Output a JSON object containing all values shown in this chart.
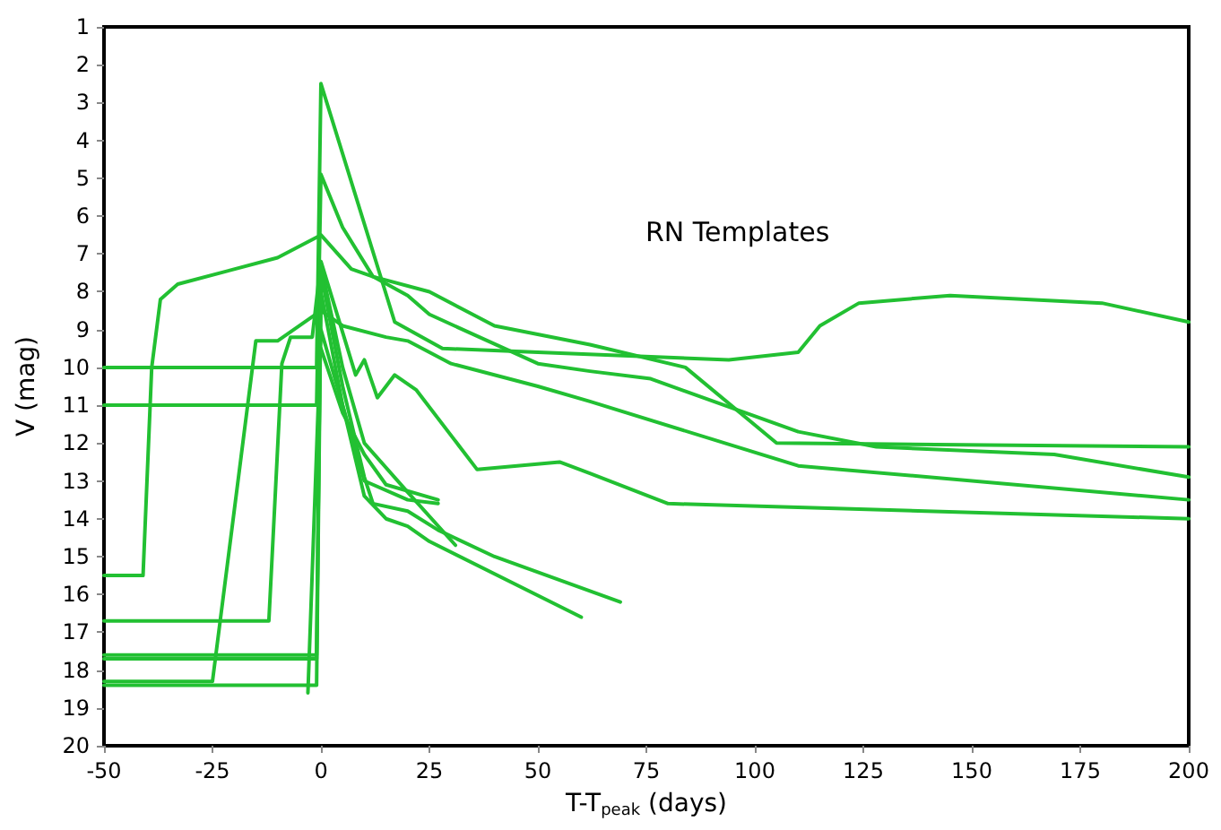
{
  "chart_data": {
    "type": "line",
    "xlabel": "T-T$_{peak}$ (days)",
    "ylabel": "V (mag)",
    "annotations": [
      "RN Templates"
    ],
    "xlim": [
      -50,
      200
    ],
    "xticks": [
      -50,
      -25,
      0,
      25,
      50,
      75,
      100,
      125,
      150,
      175,
      200
    ],
    "ylim": [
      20,
      1
    ],
    "yticks": [
      1,
      2,
      3,
      4,
      5,
      6,
      7,
      8,
      9,
      10,
      11,
      12,
      13,
      14,
      15,
      16,
      17,
      18,
      19,
      20
    ],
    "grid": false,
    "marker": "none",
    "line_style": "solid",
    "series": [
      {
        "color": "#22c032",
        "x": [
          -50,
          -1,
          0,
          17,
          28,
          50,
          94,
          110,
          115,
          124,
          145,
          180,
          200
        ],
        "values": [
          10,
          10,
          2.5,
          8.8,
          9.5,
          9.6,
          9.8,
          9.6,
          8.9,
          8.3,
          8.1,
          8.3,
          8.8
        ]
      },
      {
        "color": "#22c032",
        "x": [
          -50,
          -1,
          0,
          5,
          12,
          20,
          25,
          50,
          62,
          76,
          110,
          128,
          169,
          200
        ],
        "values": [
          11,
          11,
          4.9,
          6.3,
          7.6,
          8.1,
          8.6,
          9.9,
          10.1,
          10.3,
          11.7,
          12.1,
          12.3,
          12.9
        ]
      },
      {
        "color": "#22c032",
        "x": [
          -50,
          -41,
          -39,
          -37,
          -33,
          -10,
          0,
          7,
          12,
          25,
          40,
          62,
          84,
          105,
          200
        ],
        "values": [
          15.5,
          15.5,
          10,
          8.2,
          7.8,
          7.1,
          6.5,
          7.4,
          7.6,
          8,
          8.9,
          9.4,
          10,
          12,
          12.1
        ]
      },
      {
        "color": "#22c032",
        "x": [
          -50,
          -25,
          -15,
          -10,
          0,
          5,
          15,
          20,
          30,
          50,
          62,
          110,
          200
        ],
        "values": [
          18.3,
          18.3,
          9.3,
          9.3,
          8.5,
          8.9,
          9.2,
          9.3,
          9.9,
          10.5,
          10.9,
          12.6,
          13.5
        ]
      },
      {
        "color": "#22c032",
        "x": [
          -50,
          -12,
          -9,
          -7,
          -2,
          0,
          8,
          10,
          13,
          17,
          22,
          36,
          55,
          62,
          80,
          200
        ],
        "values": [
          16.7,
          16.7,
          9.9,
          9.2,
          9.2,
          7.2,
          10.2,
          9.8,
          10.8,
          10.2,
          10.6,
          12.7,
          12.5,
          12.8,
          13.6,
          14
        ]
      },
      {
        "color": "#22c032",
        "x": [
          -50,
          -1,
          0,
          5,
          10,
          20,
          31
        ],
        "values": [
          17.6,
          17.6,
          7.3,
          10,
          12,
          13.3,
          14.7
        ]
      },
      {
        "color": "#22c032",
        "x": [
          -50,
          -1,
          0,
          5,
          10,
          12,
          20,
          27,
          40,
          69
        ],
        "values": [
          17.7,
          17.7,
          7.5,
          10.5,
          12.9,
          13.6,
          13.8,
          14.3,
          15,
          16.2
        ]
      },
      {
        "color": "#22c032",
        "x": [
          -50,
          -1,
          0,
          5,
          10,
          15,
          20,
          25,
          60
        ],
        "values": [
          18.4,
          18.4,
          8,
          11,
          13.4,
          14,
          14.2,
          14.6,
          16.6
        ]
      },
      {
        "color": "#22c032",
        "x": [
          -3,
          0,
          5,
          10,
          20,
          27
        ],
        "values": [
          18.6,
          9,
          11,
          13,
          13.5,
          13.6
        ]
      },
      {
        "color": "#22c032",
        "x": [
          0,
          5,
          10,
          15,
          27
        ],
        "values": [
          9.5,
          11.2,
          12.3,
          13.1,
          13.5
        ]
      }
    ]
  }
}
